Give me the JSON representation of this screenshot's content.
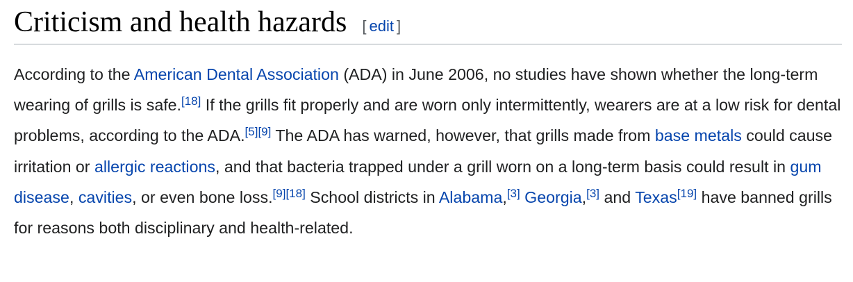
{
  "section": {
    "heading": "Criticism and health hazards",
    "edit": {
      "open_bracket": "[",
      "label": "edit",
      "close_bracket": "]"
    }
  },
  "paragraph": {
    "s01": "According to the ",
    "l01": "American Dental Association",
    "s02": " (ADA) in June 2006, no studies have shown whether the long-term wearing of grills is safe.",
    "r01": "[18]",
    "s03": " If the grills fit properly and are worn only intermittently, wearers are at a low risk for dental problems, according to the ADA.",
    "r02": "[5]",
    "r03": "[9]",
    "s04": " The ADA has warned, however, that grills made from ",
    "l02": "base metals",
    "s05": " could cause irritation or ",
    "l03": "allergic reactions",
    "s06": ", and that bacteria trapped under a grill worn on a long-term basis could result in ",
    "l04": "gum disease",
    "s07": ", ",
    "l05": "cavities",
    "s08": ", or even bone loss.",
    "r04": "[9]",
    "r05": "[18]",
    "s09": " School districts in ",
    "l06": "Alabama",
    "s10": ",",
    "r06": "[3]",
    "s11": " ",
    "l07": "Georgia",
    "s12": ",",
    "r07": "[3]",
    "s13": " and ",
    "l08": "Texas",
    "r08": "[19]",
    "s14": " have banned grills for reasons both disciplinary and health-related."
  },
  "colors": {
    "text": "#202122",
    "link": "#0645ad",
    "rule": "#a2a9b1",
    "bracket": "#54595d"
  }
}
